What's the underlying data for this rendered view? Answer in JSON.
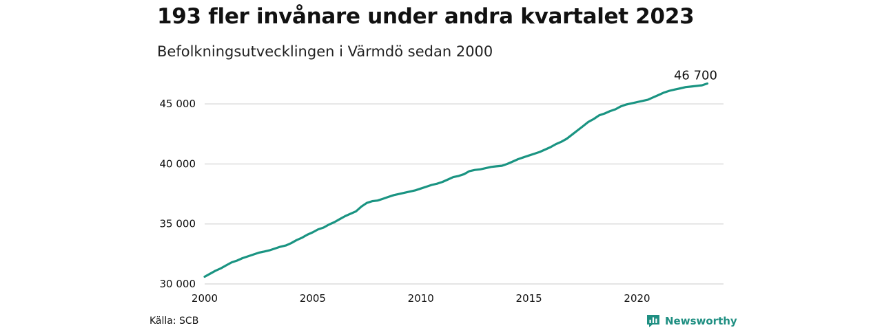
{
  "chart_data": {
    "type": "line",
    "title": "193 fler invånare under andra kvartalet 2023",
    "subtitle": "Befolkningsutvecklingen i Värmdö sedan 2000",
    "xlabel": "",
    "ylabel": "",
    "xlim": [
      2000,
      2024
    ],
    "ylim": [
      30000,
      46900
    ],
    "x_ticks": [
      2000,
      2005,
      2010,
      2015,
      2020
    ],
    "x_tick_labels": [
      "2000",
      "2005",
      "2010",
      "2015",
      "2020"
    ],
    "y_ticks": [
      30000,
      35000,
      40000,
      45000
    ],
    "y_tick_labels": [
      "30 000",
      "35 000",
      "40 000",
      "45 000"
    ],
    "grid": "horizontal",
    "line_color": "#1a9482",
    "end_label": "46 700",
    "series": [
      {
        "x": [
          2000.0,
          2000.25,
          2000.5,
          2000.75,
          2001.0,
          2001.25,
          2001.5,
          2001.75,
          2002.0,
          2002.25,
          2002.5,
          2002.75,
          2003.0,
          2003.25,
          2003.5,
          2003.75,
          2004.0,
          2004.25,
          2004.5,
          2004.75,
          2005.0,
          2005.25,
          2005.5,
          2005.75,
          2006.0,
          2006.25,
          2006.5,
          2006.75,
          2007.0,
          2007.25,
          2007.5,
          2007.75,
          2008.0,
          2008.25,
          2008.5,
          2008.75,
          2009.0,
          2009.25,
          2009.5,
          2009.75,
          2010.0,
          2010.25,
          2010.5,
          2010.75,
          2011.0,
          2011.25,
          2011.5,
          2011.75,
          2012.0,
          2012.25,
          2012.5,
          2012.75,
          2013.0,
          2013.25,
          2013.5,
          2013.75,
          2014.0,
          2014.25,
          2014.5,
          2014.75,
          2015.0,
          2015.25,
          2015.5,
          2015.75,
          2016.0,
          2016.25,
          2016.5,
          2016.75,
          2017.0,
          2017.25,
          2017.5,
          2017.75,
          2018.0,
          2018.25,
          2018.5,
          2018.75,
          2019.0,
          2019.25,
          2019.5,
          2019.75,
          2020.0,
          2020.25,
          2020.5,
          2020.75,
          2021.0,
          2021.25,
          2021.5,
          2021.75,
          2022.0,
          2022.25,
          2022.5,
          2022.75,
          2023.0,
          2023.25
        ],
        "values": [
          30600,
          30850,
          31100,
          31300,
          31550,
          31800,
          31950,
          32150,
          32300,
          32450,
          32600,
          32700,
          32800,
          32950,
          33100,
          33200,
          33400,
          33650,
          33850,
          34100,
          34300,
          34550,
          34700,
          34950,
          35150,
          35400,
          35650,
          35850,
          36050,
          36450,
          36750,
          36900,
          36950,
          37100,
          37250,
          37400,
          37500,
          37600,
          37700,
          37800,
          37950,
          38100,
          38250,
          38350,
          38500,
          38700,
          38900,
          39000,
          39150,
          39400,
          39500,
          39550,
          39650,
          39750,
          39800,
          39850,
          40000,
          40200,
          40400,
          40550,
          40700,
          40850,
          41000,
          41200,
          41400,
          41650,
          41850,
          42100,
          42450,
          42800,
          43150,
          43500,
          43750,
          44050,
          44200,
          44400,
          44550,
          44800,
          44950,
          45050,
          45150,
          45250,
          45350,
          45550,
          45750,
          45950,
          46100,
          46200,
          46300,
          46400,
          46450,
          46500,
          46550,
          46700
        ]
      }
    ]
  },
  "footer": {
    "source": "Källa: SCB",
    "brand": "Newsworthy",
    "brand_color": "#1f8f82"
  }
}
